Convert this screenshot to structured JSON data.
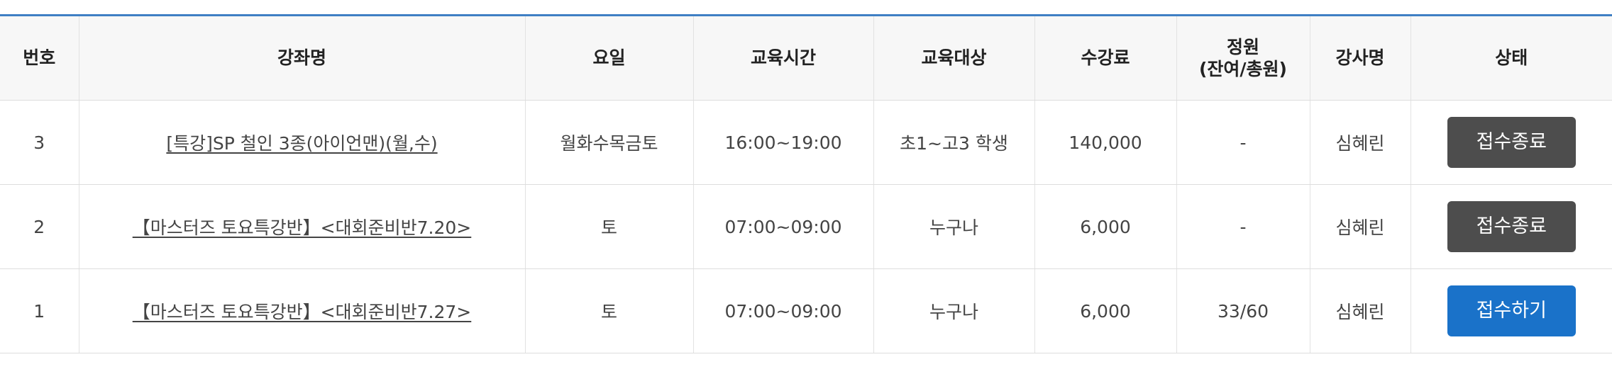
{
  "table": {
    "headers": {
      "no": "번호",
      "name": "강좌명",
      "day": "요일",
      "time": "교육시간",
      "target": "교육대상",
      "fee": "수강료",
      "capacity_line1": "정원",
      "capacity_line2": "(잔여/총원)",
      "instructor": "강사명",
      "status": "상태"
    },
    "rows": [
      {
        "no": "3",
        "name": "[특강]SP 철인 3종(아이언맨)(월,수)",
        "day": "월화수목금토",
        "time": "16:00~19:00",
        "target": "초1~고3 학생",
        "fee": "140,000",
        "capacity": "-",
        "instructor": "심혜린",
        "status": "접수종료"
      },
      {
        "no": "2",
        "name": "【마스터즈 토요특강반】<대회준비반7.20>",
        "day": "토",
        "time": "07:00~09:00",
        "target": "누구나",
        "fee": "6,000",
        "capacity": "-",
        "instructor": "심혜린",
        "status": "접수종료"
      },
      {
        "no": "1",
        "name": "【마스터즈 토요특강반】<대회준비반7.27>",
        "day": "토",
        "time": "07:00~09:00",
        "target": "누구나",
        "fee": "6,000",
        "capacity": "33/60",
        "instructor": "심혜린",
        "status": "접수하기"
      }
    ]
  },
  "colors": {
    "header_top_border": "#3f7fc4",
    "closed_button": "#4d4d4d",
    "open_button": "#1a72c9"
  }
}
